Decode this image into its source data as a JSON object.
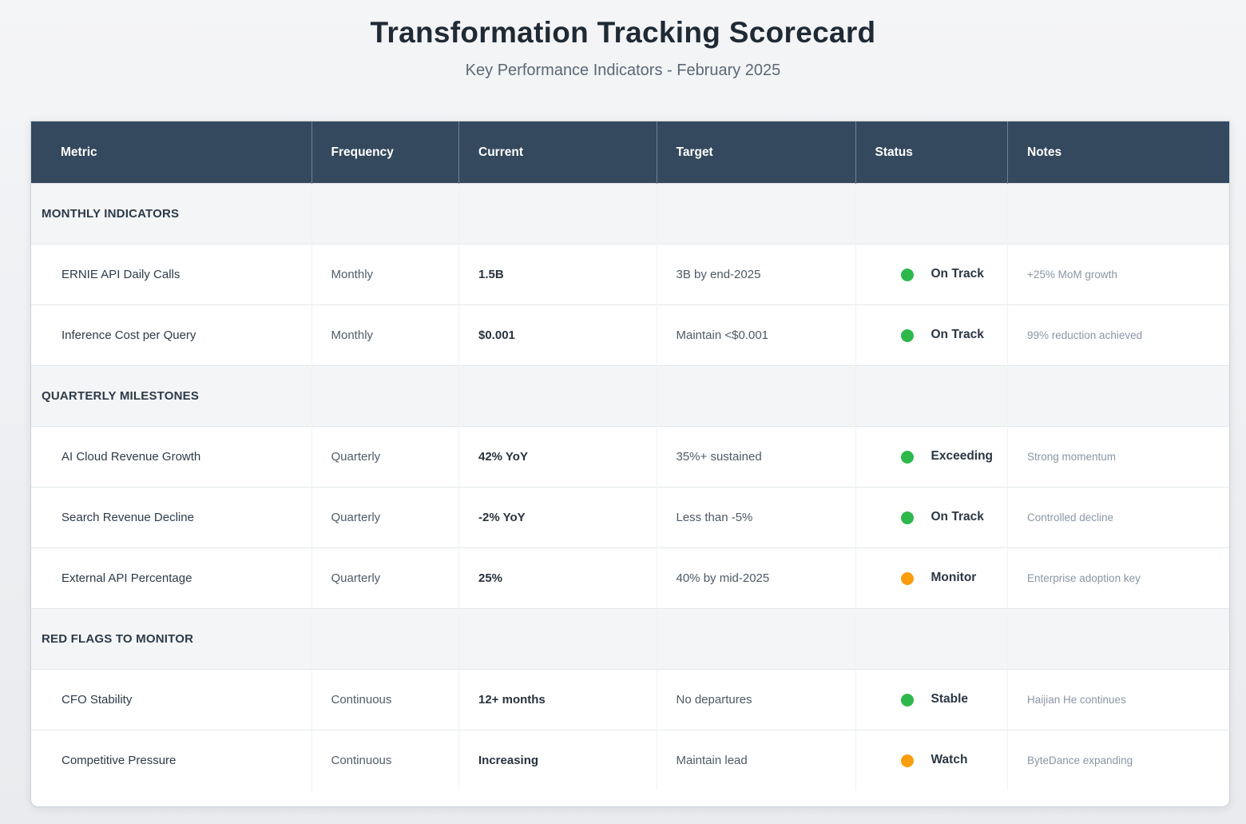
{
  "page": {
    "title": "Transformation Tracking Scorecard",
    "subtitle": "Key Performance Indicators - February 2025"
  },
  "colors": {
    "header_bg": "#34495e",
    "section_bg": "#f4f5f7",
    "status_green": "#2eb84c",
    "status_orange": "#f99d0d"
  },
  "table": {
    "columns": [
      "Metric",
      "Frequency",
      "Current",
      "Target",
      "Status",
      "Notes"
    ],
    "sections": [
      {
        "label": "MONTHLY INDICATORS",
        "rows": [
          {
            "metric": "ERNIE API Daily Calls",
            "frequency": "Monthly",
            "current": "1.5B",
            "target": "3B by end-2025",
            "status": {
              "label": "On Track",
              "color": "green"
            },
            "notes": "+25% MoM growth"
          },
          {
            "metric": "Inference Cost per Query",
            "frequency": "Monthly",
            "current": "$0.001",
            "target": "Maintain <$0.001",
            "status": {
              "label": "On Track",
              "color": "green"
            },
            "notes": "99% reduction achieved"
          }
        ]
      },
      {
        "label": "QUARTERLY MILESTONES",
        "rows": [
          {
            "metric": "AI Cloud Revenue Growth",
            "frequency": "Quarterly",
            "current": "42% YoY",
            "target": "35%+ sustained",
            "status": {
              "label": "Exceeding",
              "color": "green"
            },
            "notes": "Strong momentum"
          },
          {
            "metric": "Search Revenue Decline",
            "frequency": "Quarterly",
            "current": "-2% YoY",
            "target": "Less than -5%",
            "status": {
              "label": "On Track",
              "color": "green"
            },
            "notes": "Controlled decline"
          },
          {
            "metric": "External API Percentage",
            "frequency": "Quarterly",
            "current": "25%",
            "target": "40% by mid-2025",
            "status": {
              "label": "Monitor",
              "color": "orange"
            },
            "notes": "Enterprise adoption key"
          }
        ]
      },
      {
        "label": "RED FLAGS TO MONITOR",
        "rows": [
          {
            "metric": "CFO Stability",
            "frequency": "Continuous",
            "current": "12+ months",
            "target": "No departures",
            "status": {
              "label": "Stable",
              "color": "green"
            },
            "notes": "Haijian He continues"
          },
          {
            "metric": "Competitive Pressure",
            "frequency": "Continuous",
            "current": "Increasing",
            "target": "Maintain lead",
            "status": {
              "label": "Watch",
              "color": "orange"
            },
            "notes": "ByteDance expanding"
          }
        ]
      }
    ]
  },
  "chart_data": {
    "type": "table",
    "title": "Transformation Tracking Scorecard",
    "subtitle": "Key Performance Indicators - February 2025",
    "columns": [
      "Metric",
      "Frequency",
      "Current",
      "Target",
      "Status",
      "Notes"
    ],
    "rows": [
      [
        "MONTHLY INDICATORS",
        "",
        "",
        "",
        "",
        ""
      ],
      [
        "ERNIE API Daily Calls",
        "Monthly",
        "1.5B",
        "3B by end-2025",
        "On Track",
        "+25% MoM growth"
      ],
      [
        "Inference Cost per Query",
        "Monthly",
        "$0.001",
        "Maintain <$0.001",
        "On Track",
        "99% reduction achieved"
      ],
      [
        "QUARTERLY MILESTONES",
        "",
        "",
        "",
        "",
        ""
      ],
      [
        "AI Cloud Revenue Growth",
        "Quarterly",
        "42% YoY",
        "35%+ sustained",
        "Exceeding",
        "Strong momentum"
      ],
      [
        "Search Revenue Decline",
        "Quarterly",
        "-2% YoY",
        "Less than -5%",
        "On Track",
        "Controlled decline"
      ],
      [
        "External API Percentage",
        "Quarterly",
        "25%",
        "40% by mid-2025",
        "Monitor",
        "Enterprise adoption key"
      ],
      [
        "RED FLAGS TO MONITOR",
        "",
        "",
        "",
        "",
        ""
      ],
      [
        "CFO Stability",
        "Continuous",
        "12+ months",
        "No departures",
        "Stable",
        "Haijian He continues"
      ],
      [
        "Competitive Pressure",
        "Continuous",
        "Increasing",
        "Maintain lead",
        "Watch",
        "ByteDance expanding"
      ]
    ],
    "status_colors": {
      "On Track": "green",
      "Exceeding": "green",
      "Monitor": "orange",
      "Stable": "green",
      "Watch": "orange"
    }
  }
}
